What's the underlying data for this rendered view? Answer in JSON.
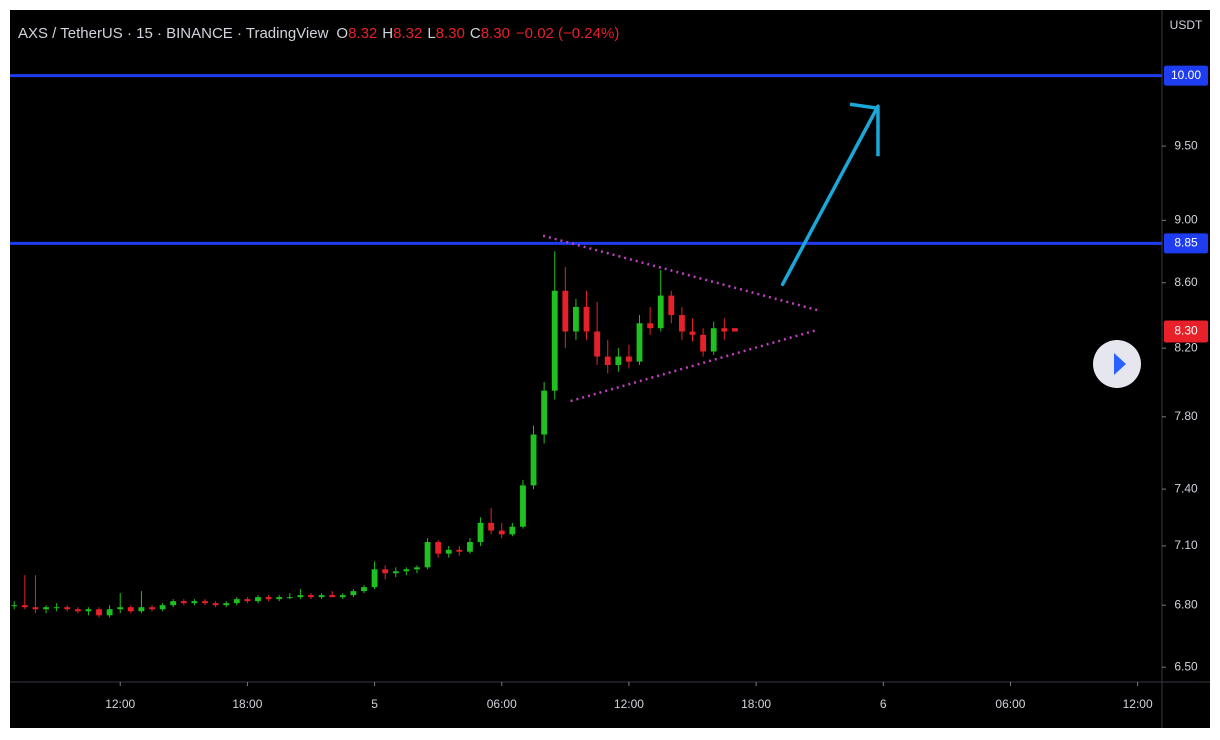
{
  "chart_data": {
    "type": "candlestick",
    "title": "AXS / TetherUS · 15 · BINANCE · TradingView",
    "ohlc_legend": [
      {
        "label": "O",
        "value": "8.32"
      },
      {
        "label": "H",
        "value": "8.32"
      },
      {
        "label": "L",
        "value": "8.30"
      },
      {
        "label": "C",
        "value": "8.30"
      }
    ],
    "change": "−0.02 (−0.24%)",
    "currency": "USDT",
    "up_color": "#1fc01f",
    "down_color": "#e8202a",
    "log_scale": true,
    "ylim": [
      6.43,
      10.49
    ],
    "yticks": [
      {
        "value": 6.5,
        "label": "6.50"
      },
      {
        "value": 6.8,
        "label": "6.80"
      },
      {
        "value": 7.1,
        "label": "7.10"
      },
      {
        "value": 7.4,
        "label": "7.40"
      },
      {
        "value": 7.8,
        "label": "7.80"
      },
      {
        "value": 8.2,
        "label": "8.20"
      },
      {
        "value": 8.6,
        "label": "8.60"
      },
      {
        "value": 9.0,
        "label": "9.00"
      },
      {
        "value": 9.5,
        "label": "9.50"
      }
    ],
    "xlim": [
      -0.4,
      108.3
    ],
    "xticks": [
      {
        "value": 10,
        "label": "12:00"
      },
      {
        "value": 22,
        "label": "18:00"
      },
      {
        "value": 34,
        "label": "5"
      },
      {
        "value": 46,
        "label": "06:00"
      },
      {
        "value": 58,
        "label": "12:00"
      },
      {
        "value": 70,
        "label": "18:00"
      },
      {
        "value": 82,
        "label": "6"
      },
      {
        "value": 94,
        "label": "06:00"
      },
      {
        "value": 106,
        "label": "12:00"
      }
    ],
    "open": [
      6.8,
      6.8,
      6.79,
      6.78,
      6.79,
      6.79,
      6.78,
      6.77,
      6.78,
      6.75,
      6.78,
      6.79,
      6.77,
      6.79,
      6.78,
      6.8,
      6.82,
      6.81,
      6.82,
      6.81,
      6.8,
      6.81,
      6.83,
      6.82,
      6.84,
      6.83,
      6.84,
      6.84,
      6.85,
      6.84,
      6.85,
      6.84,
      6.85,
      6.87,
      6.89,
      6.98,
      6.96,
      6.97,
      6.98,
      6.99,
      7.12,
      7.06,
      7.08,
      7.07,
      7.12,
      7.22,
      7.18,
      7.16,
      7.2,
      7.42,
      7.7,
      7.95,
      8.55,
      8.3,
      8.45,
      8.3,
      8.15,
      8.1,
      8.15,
      8.12,
      8.35,
      8.32,
      8.52,
      8.4,
      8.3,
      8.28,
      8.18,
      8.32,
      8.32
    ],
    "high": [
      6.82,
      6.95,
      6.95,
      6.8,
      6.81,
      6.8,
      6.79,
      6.79,
      6.79,
      6.8,
      6.86,
      6.8,
      6.87,
      6.8,
      6.81,
      6.83,
      6.83,
      6.83,
      6.83,
      6.82,
      6.82,
      6.84,
      6.84,
      6.85,
      6.85,
      6.85,
      6.86,
      6.88,
      6.86,
      6.86,
      6.87,
      6.86,
      6.88,
      6.9,
      7.02,
      7.0,
      6.99,
      6.99,
      7.0,
      7.14,
      7.13,
      7.1,
      7.1,
      7.14,
      7.25,
      7.3,
      7.22,
      7.22,
      7.45,
      7.75,
      8.0,
      8.8,
      8.7,
      8.5,
      8.55,
      8.48,
      8.25,
      8.2,
      8.22,
      8.4,
      8.45,
      8.68,
      8.55,
      8.45,
      8.38,
      8.32,
      8.36,
      8.38,
      8.32
    ],
    "low": [
      6.78,
      6.78,
      6.76,
      6.76,
      6.77,
      6.77,
      6.76,
      6.75,
      6.74,
      6.74,
      6.76,
      6.76,
      6.76,
      6.77,
      6.77,
      6.79,
      6.8,
      6.8,
      6.8,
      6.79,
      6.79,
      6.8,
      6.81,
      6.81,
      6.82,
      6.82,
      6.83,
      6.83,
      6.83,
      6.83,
      6.84,
      6.83,
      6.84,
      6.86,
      6.88,
      6.93,
      6.94,
      6.95,
      6.96,
      6.98,
      7.04,
      7.04,
      7.05,
      7.06,
      7.1,
      7.16,
      7.14,
      7.15,
      7.19,
      7.4,
      7.65,
      7.9,
      8.2,
      8.25,
      8.25,
      8.1,
      8.05,
      8.06,
      8.08,
      8.1,
      8.28,
      8.3,
      8.35,
      8.25,
      8.24,
      8.15,
      8.16,
      8.25,
      8.3
    ],
    "close": [
      6.8,
      6.79,
      6.78,
      6.79,
      6.79,
      6.78,
      6.77,
      6.78,
      6.75,
      6.78,
      6.79,
      6.77,
      6.79,
      6.78,
      6.8,
      6.82,
      6.81,
      6.82,
      6.81,
      6.8,
      6.81,
      6.83,
      6.82,
      6.84,
      6.83,
      6.84,
      6.84,
      6.85,
      6.84,
      6.85,
      6.84,
      6.85,
      6.87,
      6.89,
      6.98,
      6.96,
      6.97,
      6.98,
      6.99,
      7.12,
      7.06,
      7.08,
      7.07,
      7.12,
      7.22,
      7.18,
      7.16,
      7.2,
      7.42,
      7.7,
      7.95,
      8.55,
      8.3,
      8.45,
      8.3,
      8.15,
      8.1,
      8.15,
      8.12,
      8.35,
      8.32,
      8.52,
      8.4,
      8.3,
      8.28,
      8.18,
      8.32,
      8.3,
      8.3
    ],
    "levels": [
      {
        "value": 10.0,
        "label": "10.00",
        "color": "#1e3cf0"
      },
      {
        "value": 8.85,
        "label": "8.85",
        "color": "#1e3cf0"
      }
    ],
    "last_price": {
      "value": 8.3,
      "label": "8.30",
      "color": "#e8202a"
    },
    "trendlines": [
      {
        "x": [
          49.9,
          75.8
        ],
        "y": [
          8.9,
          8.43
        ],
        "color": "#c040c0"
      },
      {
        "x": [
          52.5,
          75.8
        ],
        "y": [
          7.89,
          8.31
        ],
        "color": "#c040c0"
      }
    ],
    "arrow": {
      "x": [
        72.5,
        81.5
      ],
      "y": [
        8.59,
        9.78
      ],
      "color": "#1aa8d8"
    }
  }
}
